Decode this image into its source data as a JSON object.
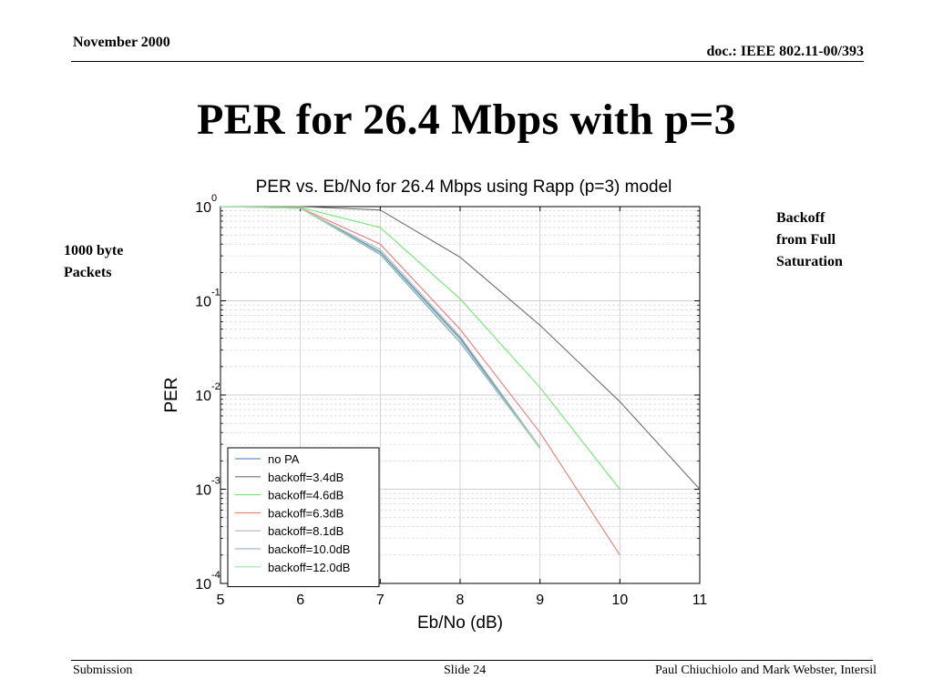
{
  "header": {
    "date": "November 2000",
    "doc": "doc.: IEEE 802.11-00/393"
  },
  "slide": {
    "title": "PER for 26.4 Mbps with p=3",
    "left_note": [
      "1000 byte",
      "Packets"
    ],
    "right_note": [
      "Backoff",
      "from Full",
      "Saturation"
    ]
  },
  "footer": {
    "left": "Submission",
    "center": "Slide 24",
    "right": "Paul Chiuchiolo and Mark Webster, Intersil"
  },
  "chart_data": {
    "type": "line",
    "title": "PER vs. Eb/No for 26.4 Mbps using Rapp (p=3) model",
    "xlabel": "Eb/No (dB)",
    "ylabel": "PER",
    "xlim": [
      5,
      11
    ],
    "ylim": [
      0.0001,
      1
    ],
    "yscale": "log",
    "grid": true,
    "legend_position": "bottom-left",
    "x_ticks": [
      "5",
      "6",
      "7",
      "8",
      "9",
      "10",
      "11"
    ],
    "y_ticks": [
      {
        "base": "10",
        "exp": "0",
        "value": 1
      },
      {
        "base": "10",
        "exp": "-1",
        "value": 0.1
      },
      {
        "base": "10",
        "exp": "-2",
        "value": 0.01
      },
      {
        "base": "10",
        "exp": "-3",
        "value": 0.001
      },
      {
        "base": "10",
        "exp": "-4",
        "value": 0.0001
      }
    ],
    "series": [
      {
        "name": "no PA",
        "color": "#4a6ec8",
        "x": [
          5,
          6,
          7,
          8,
          9
        ],
        "y": [
          1.0,
          0.96,
          0.33,
          0.04,
          0.0027
        ]
      },
      {
        "name": "backoff=3.4dB",
        "color": "#707070",
        "x": [
          5,
          6,
          7,
          8,
          9,
          10,
          11
        ],
        "y": [
          1.0,
          1.0,
          0.92,
          0.29,
          0.055,
          0.0085,
          0.001
        ]
      },
      {
        "name": "backoff=4.6dB",
        "color": "#6ee86e",
        "x": [
          5,
          6,
          7,
          8,
          9,
          10
        ],
        "y": [
          1.0,
          0.98,
          0.6,
          0.105,
          0.012,
          0.001
        ]
      },
      {
        "name": "backoff=6.3dB",
        "color": "#f07a7a",
        "x": [
          5,
          6,
          7,
          8,
          9,
          10
        ],
        "y": [
          1.0,
          0.97,
          0.4,
          0.05,
          0.004,
          0.0002
        ]
      },
      {
        "name": "backoff=8.1dB",
        "color": "#b4b4b4",
        "x": [
          5,
          6,
          7,
          8,
          9
        ],
        "y": [
          1.0,
          0.96,
          0.35,
          0.042,
          0.0028
        ]
      },
      {
        "name": "backoff=10.0dB",
        "color": "#8ca0d2",
        "x": [
          5,
          6,
          7,
          8,
          9
        ],
        "y": [
          1.0,
          0.96,
          0.31,
          0.036,
          0.0027
        ]
      },
      {
        "name": "backoff=12.0dB",
        "color": "#9be89b",
        "x": [
          5,
          6,
          7,
          8,
          9
        ],
        "y": [
          1.0,
          0.96,
          0.32,
          0.038,
          0.0027
        ]
      }
    ]
  }
}
